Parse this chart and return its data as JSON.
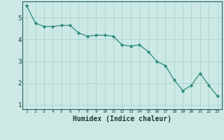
{
  "x": [
    1,
    2,
    3,
    4,
    5,
    6,
    7,
    8,
    9,
    10,
    11,
    12,
    13,
    14,
    15,
    16,
    17,
    18,
    19,
    20,
    21,
    22,
    23
  ],
  "y": [
    5.55,
    4.75,
    4.6,
    4.6,
    4.65,
    4.65,
    4.3,
    4.15,
    4.2,
    4.2,
    4.15,
    3.75,
    3.7,
    3.75,
    3.45,
    3.0,
    2.8,
    2.15,
    1.65,
    1.9,
    2.45,
    1.9,
    1.4
  ],
  "line_color": "#2e8b7a",
  "marker_color": "#2e8b7a",
  "bg_color": "#cce9e5",
  "grid_color": "#aad4cf",
  "xlabel": "Humidex (Indice chaleur)",
  "xlabel_fontsize": 7,
  "yticks": [
    1,
    2,
    3,
    4,
    5
  ],
  "xticks": [
    1,
    2,
    3,
    4,
    5,
    6,
    7,
    8,
    9,
    10,
    11,
    12,
    13,
    14,
    15,
    16,
    17,
    18,
    19,
    20,
    21,
    22,
    23
  ],
  "ylim": [
    0.8,
    5.75
  ],
  "xlim": [
    0.5,
    23.5
  ]
}
